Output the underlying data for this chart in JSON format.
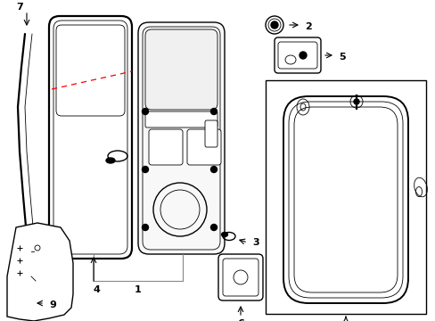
{
  "bg_color": "#ffffff",
  "line_color": "#000000",
  "dashed_line_color": "#ff0000",
  "lw_main": 1.0,
  "lw_thick": 1.6,
  "lw_thin": 0.6,
  "lw_ws": 1.4,
  "font_size": 8,
  "font_size_small": 7
}
